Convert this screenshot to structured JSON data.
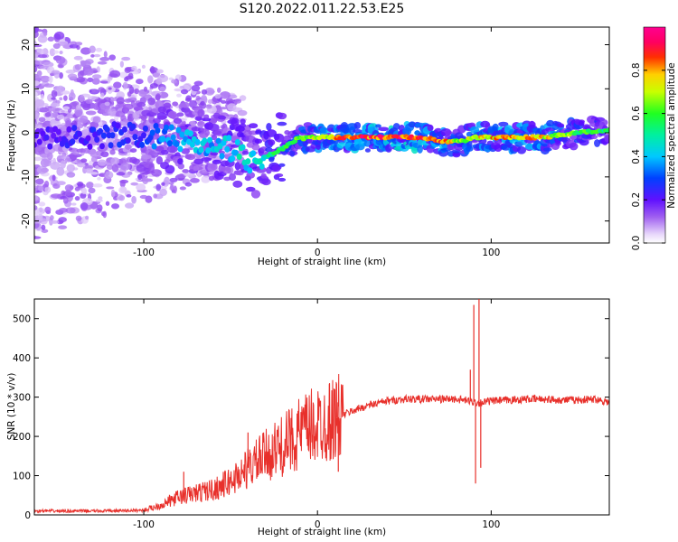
{
  "title": "S120.2022.011.22.53.E25",
  "chart_data": [
    {
      "type": "heatmap",
      "xlabel": "Height of straight line (km)",
      "ylabel": "Frequency (Hz)",
      "xlim": [
        -163,
        168
      ],
      "ylim": [
        -25,
        24
      ],
      "xticks": [
        -100,
        0,
        100
      ],
      "yticks": [
        -20,
        -10,
        0,
        10,
        20
      ],
      "grid": false,
      "colorbar": {
        "label": "Normalized spectral amplitude",
        "range": [
          0,
          1
        ],
        "ticks": [
          0.0,
          0.2,
          0.4,
          0.6,
          0.8
        ],
        "colormap": "purple-blue-cyan-green-yellow-red-pink"
      },
      "ridge": [
        {
          "x": -160,
          "f": -1.0,
          "a": 0.25
        },
        {
          "x": -140,
          "f": -1.0,
          "a": 0.28
        },
        {
          "x": -120,
          "f": -0.5,
          "a": 0.3
        },
        {
          "x": -100,
          "f": -0.5,
          "a": 0.32
        },
        {
          "x": -90,
          "f": -1.0,
          "a": 0.4
        },
        {
          "x": -75,
          "f": -1.5,
          "a": 0.45
        },
        {
          "x": -60,
          "f": -2.5,
          "a": 0.45
        },
        {
          "x": -48,
          "f": -4.0,
          "a": 0.5
        },
        {
          "x": -38,
          "f": -6.5,
          "a": 0.5
        },
        {
          "x": -30,
          "f": -5.5,
          "a": 0.55
        },
        {
          "x": -22,
          "f": -4.0,
          "a": 0.6
        },
        {
          "x": -12,
          "f": -1.5,
          "a": 0.7
        },
        {
          "x": -4,
          "f": -1.0,
          "a": 0.72
        },
        {
          "x": 5,
          "f": -1.0,
          "a": 0.8
        },
        {
          "x": 20,
          "f": -1.0,
          "a": 0.9
        },
        {
          "x": 40,
          "f": -1.0,
          "a": 0.95
        },
        {
          "x": 60,
          "f": -1.0,
          "a": 0.92
        },
        {
          "x": 72,
          "f": -2.0,
          "a": 0.85
        },
        {
          "x": 82,
          "f": -2.0,
          "a": 0.7
        },
        {
          "x": 92,
          "f": -1.0,
          "a": 0.8
        },
        {
          "x": 110,
          "f": -1.0,
          "a": 0.85
        },
        {
          "x": 130,
          "f": -1.0,
          "a": 0.8
        },
        {
          "x": 150,
          "f": 0.0,
          "a": 0.65
        },
        {
          "x": 165,
          "f": 0.5,
          "a": 0.6
        }
      ]
    },
    {
      "type": "line",
      "xlabel": "Height of straight line (km)",
      "ylabel": "SNR (10 * v/v)",
      "xlim": [
        -163,
        168
      ],
      "ylim": [
        0,
        550
      ],
      "xticks": [
        -100,
        0,
        100
      ],
      "yticks": [
        0,
        100,
        200,
        300,
        400,
        500
      ],
      "grid": false,
      "series": [
        {
          "color": "#e8302b",
          "x": [
            -163,
            -140,
            -120,
            -100,
            -90,
            -80,
            -70,
            -60,
            -50,
            -40,
            -30,
            -20,
            -10,
            0,
            10,
            20,
            30,
            40,
            50,
            60,
            70,
            80,
            88,
            92,
            100,
            110,
            120,
            130,
            140,
            150,
            160,
            168
          ],
          "y": [
            10,
            10,
            10,
            12,
            25,
            45,
            55,
            65,
            85,
            120,
            150,
            175,
            210,
            230,
            245,
            265,
            280,
            290,
            295,
            295,
            295,
            295,
            290,
            285,
            290,
            292,
            295,
            295,
            293,
            293,
            295,
            287
          ],
          "spikes": [
            {
              "x": -77,
              "y": 110
            },
            {
              "x": -40,
              "y": 210
            },
            {
              "x": -25,
              "y": 200
            },
            {
              "x": 11,
              "y": 335
            },
            {
              "x": 12,
              "y": 110
            },
            {
              "x": 88,
              "y": 370
            },
            {
              "x": 90,
              "y": 535
            },
            {
              "x": 91,
              "y": 80
            },
            {
              "x": 93,
              "y": 550
            },
            {
              "x": 94,
              "y": 120
            }
          ]
        }
      ]
    }
  ]
}
